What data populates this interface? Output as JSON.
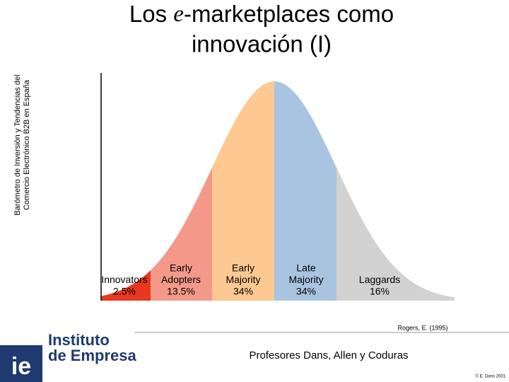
{
  "header": {
    "title_prefix": "Los ",
    "title_emph": "e",
    "title_line1_rest": "-marketplaces como",
    "title_line2": "innovación (I)"
  },
  "side_note": {
    "lines": [
      "Barómetro de Inversión y Tendencias del",
      "Comercio Electrónico B2B en España"
    ]
  },
  "segments": [
    {
      "lines": [
        "Innovators"
      ],
      "share": "2.5%"
    },
    {
      "lines": [
        "Early",
        "Adopters"
      ],
      "share": "13.5%"
    },
    {
      "lines": [
        "Early",
        "Majority"
      ],
      "share": "34%"
    },
    {
      "lines": [
        "Late",
        "Majority"
      ],
      "share": "34%"
    },
    {
      "lines": [
        "Laggards"
      ],
      "share": "16%"
    }
  ],
  "citation": "Rogers, E. (1995)",
  "footer": {
    "logo_mark": "ie",
    "logo_lines": [
      "Instituto",
      "de Empresa"
    ],
    "authors": "Profesores Dans, Allen y Coduras",
    "copyright": "© E. Dans 2001"
  }
}
